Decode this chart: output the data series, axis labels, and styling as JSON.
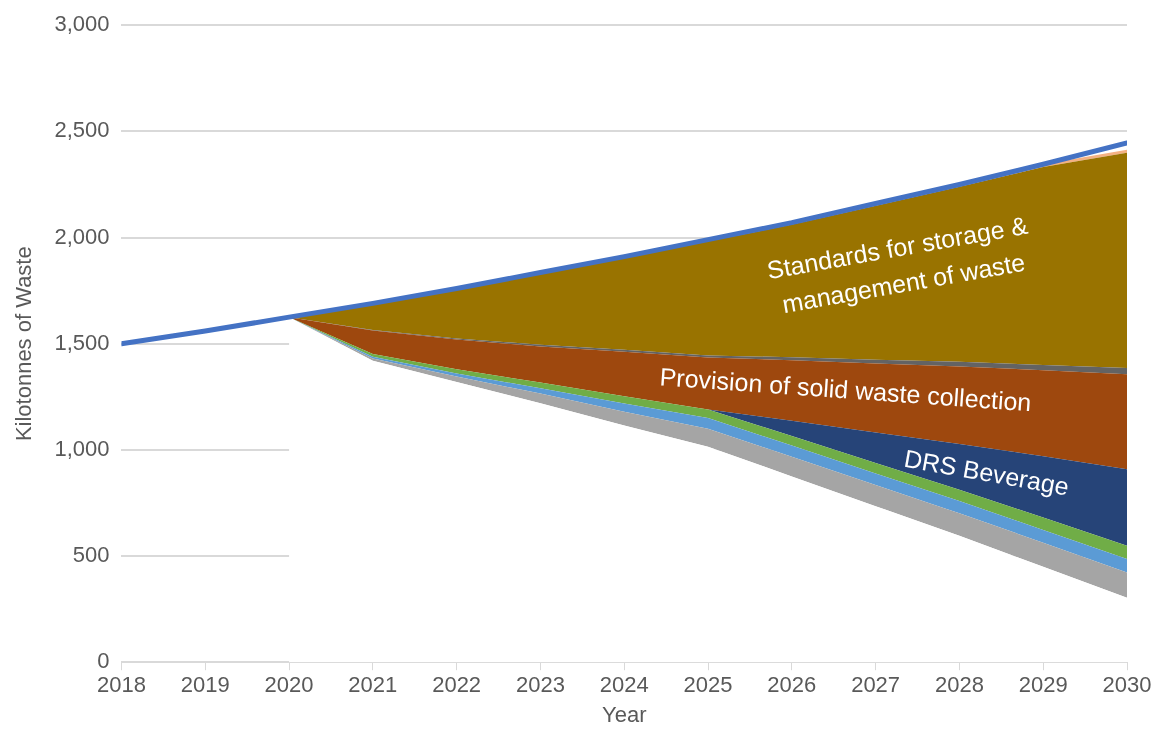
{
  "chart_data": {
    "type": "area",
    "stacked": true,
    "xlabel": "Year",
    "ylabel": "Kilotonnes of Waste",
    "x": [
      2018,
      2019,
      2020,
      2021,
      2022,
      2023,
      2024,
      2025,
      2026,
      2027,
      2028,
      2029,
      2030
    ],
    "xlim": [
      2018,
      2030
    ],
    "xticks": [
      2018,
      2019,
      2020,
      2021,
      2022,
      2023,
      2024,
      2025,
      2026,
      2027,
      2028,
      2029,
      2030
    ],
    "ylim": [
      0,
      3000
    ],
    "yticks": [
      0,
      500,
      {
        "value": 1000,
        "label": "1,000"
      },
      {
        "value": 1500,
        "label": "1,500"
      },
      {
        "value": 2000,
        "label": "2,000"
      },
      {
        "value": 2500,
        "label": "2,500"
      },
      {
        "value": 3000,
        "label": "3,000"
      }
    ],
    "grid": "y",
    "marker": "none",
    "series": [
      {
        "color": "#ffffff",
        "values": [
          null,
          null,
          1625,
          1420,
          1320,
          1220,
          1115,
          1015,
          875,
          735,
          595,
          450,
          303
        ]
      },
      {
        "color": "#a5a5a5",
        "values": [
          null,
          null,
          0,
          10,
          25,
          45,
          65,
          85,
          92,
          99,
          106,
          113,
          120
        ]
      },
      {
        "color": "#5b9bd5",
        "values": [
          null,
          null,
          0,
          8,
          15,
          25,
          38,
          50,
          53,
          55,
          58,
          60,
          63
        ]
      },
      {
        "color": "#70ad47",
        "values": [
          null,
          null,
          0,
          14,
          20,
          27,
          34,
          40,
          45,
          49,
          53,
          58,
          62
        ]
      },
      {
        "color": "#264478",
        "values": [
          null,
          null,
          0,
          0,
          0,
          0,
          0,
          0,
          72,
          144,
          216,
          289,
          361
        ]
      },
      {
        "color": "#9e480e",
        "values": [
          null,
          null,
          0,
          110,
          140,
          170,
          210,
          245,
          285,
          325,
          365,
          405,
          447
        ]
      },
      {
        "color": "#636363",
        "values": [
          null,
          null,
          0,
          3,
          5,
          8,
          9,
          10,
          14,
          18,
          22,
          25,
          29
        ]
      },
      {
        "color": "#997300",
        "values": [
          null,
          null,
          0,
          123,
          231,
          335,
          433,
          537,
          625,
          725,
          824,
          932,
          1014
        ]
      },
      {
        "color": "#f4b183",
        "values": [
          null,
          null,
          0,
          2,
          4,
          5,
          6,
          8,
          9,
          10,
          11,
          13,
          14
        ]
      },
      {
        "type": "line",
        "color": "#4472c4",
        "values": [
          1500,
          1560,
          1625,
          1690,
          1760,
          1835,
          1910,
          1990,
          2070,
          2160,
          2250,
          2345,
          2445
        ]
      }
    ],
    "annotations": [
      "Standards for storage &\nmanagement of waste",
      "Provision of solid waste collection",
      "DRS Beverage"
    ]
  }
}
